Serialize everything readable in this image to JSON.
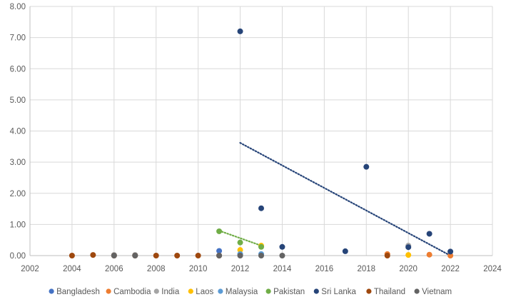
{
  "chart_data": {
    "type": "scatter",
    "title": "",
    "xlabel": "",
    "ylabel": "",
    "xlim": [
      2002,
      2024
    ],
    "ylim": [
      0,
      8
    ],
    "x_ticks": [
      "2002",
      "2004",
      "2006",
      "2008",
      "2010",
      "2012",
      "2014",
      "2016",
      "2018",
      "2020",
      "2022",
      "2024"
    ],
    "y_ticks": [
      "0.00",
      "1.00",
      "2.00",
      "3.00",
      "4.00",
      "5.00",
      "6.00",
      "7.00",
      "8.00"
    ],
    "grid": "vertical and horizontal",
    "legend_position": "bottom",
    "series": [
      {
        "name": "Bangladesh",
        "color": "#4472c4",
        "points": [
          [
            2011,
            0.15
          ],
          [
            2020,
            0.3
          ]
        ]
      },
      {
        "name": "Cambodia",
        "color": "#ed7d31",
        "points": [
          [
            2019,
            0.05
          ],
          [
            2021,
            0.03
          ],
          [
            2022,
            0.0
          ]
        ]
      },
      {
        "name": "India",
        "color": "#a5a5a5",
        "points": [
          [
            2006,
            0.02
          ],
          [
            2007,
            0.02
          ],
          [
            2012,
            0.03
          ],
          [
            2013,
            0.3
          ],
          [
            2020,
            0.32
          ]
        ]
      },
      {
        "name": "Laos",
        "color": "#ffc000",
        "points": [
          [
            2012,
            0.18
          ],
          [
            2013,
            0.32
          ],
          [
            2020,
            0.02
          ]
        ]
      },
      {
        "name": "Malaysia",
        "color": "#5b9bd5",
        "points": [
          [
            2012,
            0.05
          ],
          [
            2013,
            0.05
          ]
        ]
      },
      {
        "name": "Pakistan",
        "color": "#70ad47",
        "points": [
          [
            2011,
            0.78
          ],
          [
            2012,
            0.42
          ],
          [
            2013,
            0.28
          ]
        ],
        "trendline": {
          "x": [
            2011,
            2013
          ],
          "y": [
            0.8,
            0.32
          ]
        }
      },
      {
        "name": "Sri Lanka",
        "color": "#264478",
        "points": [
          [
            2012,
            7.2
          ],
          [
            2013,
            1.52
          ],
          [
            2014,
            0.28
          ],
          [
            2017,
            0.14
          ],
          [
            2018,
            2.85
          ],
          [
            2020,
            0.27
          ],
          [
            2021,
            0.7
          ],
          [
            2022,
            0.13
          ]
        ],
        "trendline": {
          "x": [
            2012,
            2022
          ],
          "y": [
            3.62,
            0.0
          ]
        }
      },
      {
        "name": "Thailand",
        "color": "#9e480e",
        "points": [
          [
            2004,
            0.0
          ],
          [
            2005,
            0.02
          ],
          [
            2006,
            0.0
          ],
          [
            2007,
            0.0
          ],
          [
            2008,
            0.0
          ],
          [
            2009,
            0.0
          ],
          [
            2010,
            0.0
          ],
          [
            2011,
            0.0
          ],
          [
            2019,
            0.0
          ]
        ]
      },
      {
        "name": "Vietnam",
        "color": "#636363",
        "points": [
          [
            2006,
            0.0
          ],
          [
            2007,
            0.0
          ],
          [
            2011,
            0.0
          ],
          [
            2012,
            0.0
          ],
          [
            2013,
            0.0
          ],
          [
            2014,
            0.0
          ]
        ]
      }
    ]
  }
}
